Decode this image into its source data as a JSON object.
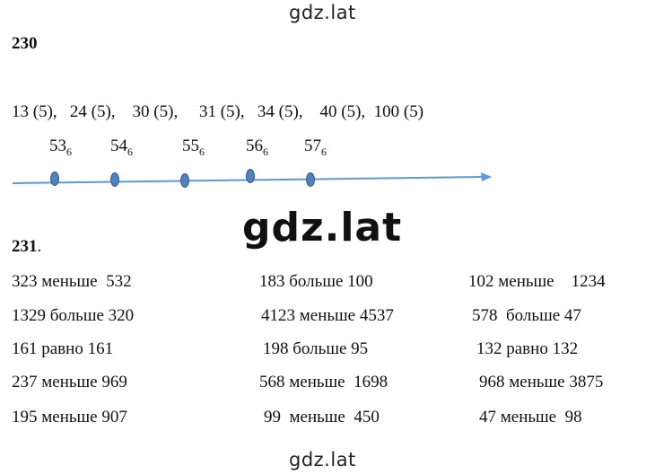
{
  "watermark_top": "gdz.lat",
  "watermark_middle": "gdz.lat",
  "watermark_bottom": "gdz.lat",
  "task230": {
    "number": "230",
    "values_line": "13 (5),   24 (5),    30 (5),     31 (5),   34 (5),    40 (5),  100 (5)",
    "points": [
      {
        "base": "53",
        "sub": "6"
      },
      {
        "base": "54",
        "sub": "6"
      },
      {
        "base": "55",
        "sub": "6"
      },
      {
        "base": "56",
        "sub": "6"
      },
      {
        "base": "57",
        "sub": "6"
      }
    ],
    "line_color": "#5b9bd5",
    "point_color": "#4f81bd"
  },
  "task231": {
    "number": "231",
    "number_suffix": ".",
    "columns": [
      [
        "323 меньше  532",
        "1329 больше 320",
        "161 равно 161",
        "237 меньше 969",
        "195 меньше 907"
      ],
      [
        "183 больше 100",
        "4123 меньше 4537",
        "198 больше 95",
        "568 меньше  1698",
        "99  меньше  450"
      ],
      [
        "102 меньше    1234",
        "578  больше 47",
        "132 равно 132",
        "968 меньше 3875",
        "47 меньше  98"
      ]
    ]
  }
}
